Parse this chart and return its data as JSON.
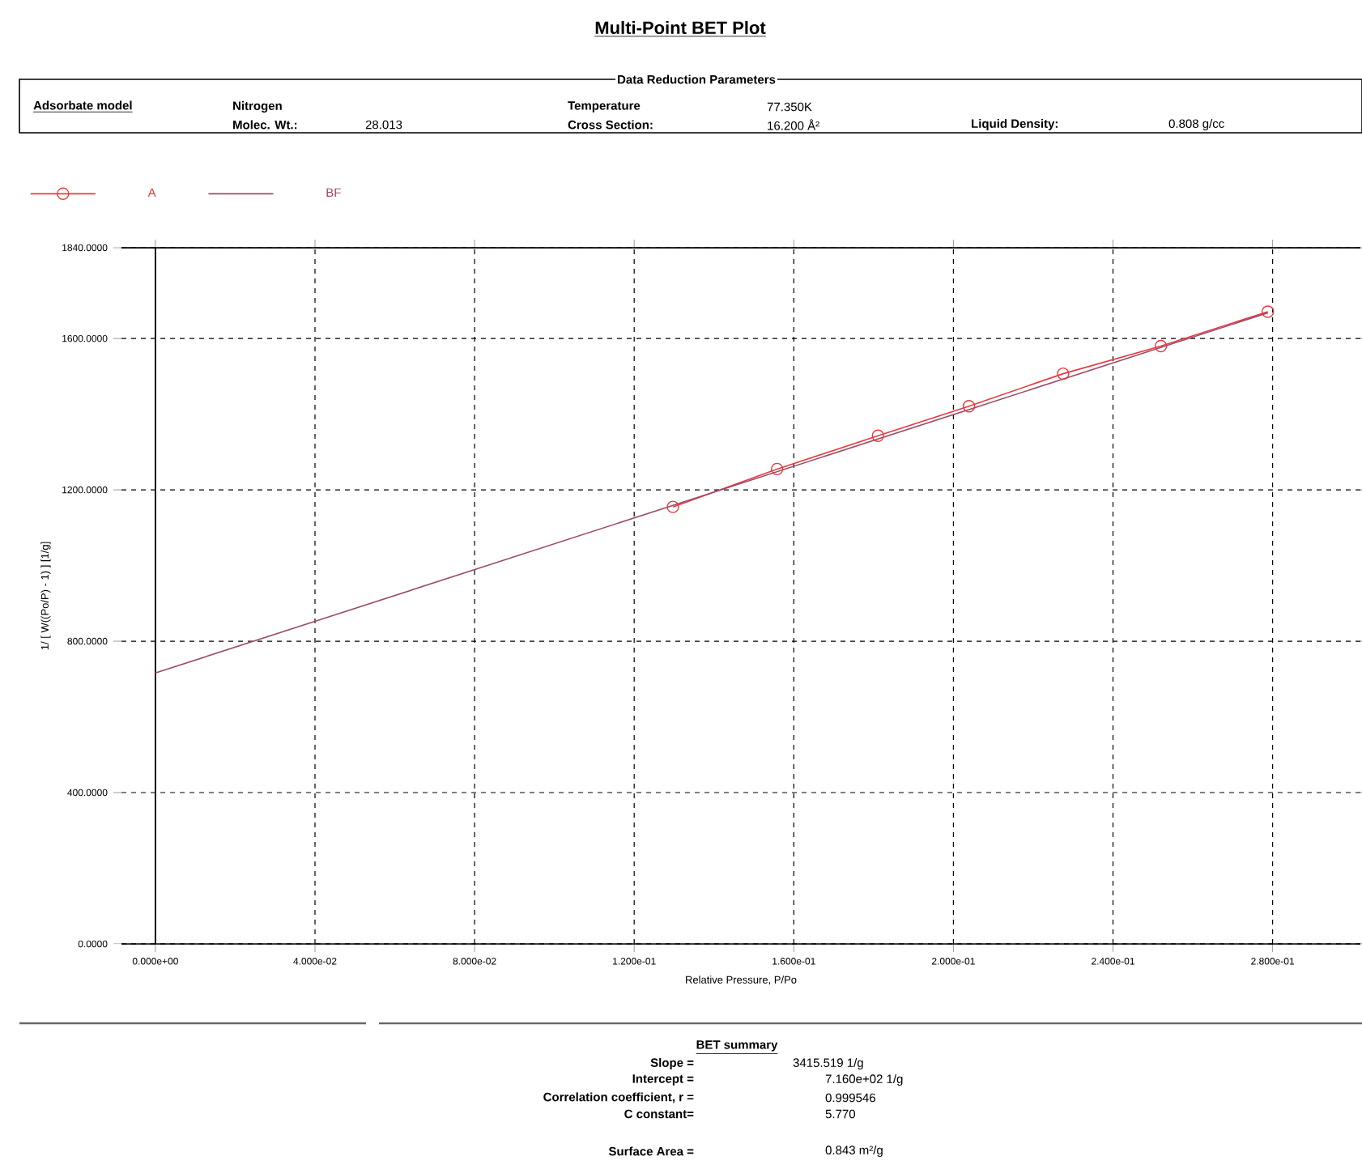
{
  "chart_data": {
    "type": "line",
    "title": "Multi-Point BET Plot",
    "xlabel": "Relative Pressure, P/Po",
    "ylabel": "1/ [ W((Po/P) - 1) ] [1/g]",
    "series": [
      {
        "name": "A",
        "type": "line",
        "color": "#e8383d",
        "marker": "circle",
        "line_style": "solid",
        "x": [
          0.1297,
          0.1558,
          0.1811,
          0.2039,
          0.2275,
          0.252,
          0.2788
        ],
        "values": [
          1155,
          1255,
          1343,
          1421,
          1507,
          1580,
          1671
        ]
      },
      {
        "name": "BF",
        "type": "line",
        "color": "#9c4a6a",
        "marker": "none",
        "line_style": "solid",
        "x": [
          0,
          0.2788
        ],
        "values": [
          716,
          1668
        ]
      }
    ],
    "xlim": [
      -0.0085,
      0.302
    ],
    "ylim": [
      0,
      1840
    ],
    "xticks": [
      {
        "value": 0,
        "label": "0.000e+00"
      },
      {
        "value": 0.04,
        "label": "4.000e-02"
      },
      {
        "value": 0.08,
        "label": "8.000e-02"
      },
      {
        "value": 0.12,
        "label": "1.200e-01"
      },
      {
        "value": 0.16,
        "label": "1.600e-01"
      },
      {
        "value": 0.2,
        "label": "2.000e-01"
      },
      {
        "value": 0.24,
        "label": "2.400e-01"
      },
      {
        "value": 0.28,
        "label": "2.800e-01"
      }
    ],
    "yticks": [
      {
        "value": 0,
        "label": "0.0000"
      },
      {
        "value": 400,
        "label": "400.0000"
      },
      {
        "value": 800,
        "label": "800.0000"
      },
      {
        "value": 1200,
        "label": "1200.0000"
      },
      {
        "value": 1600,
        "label": "1600.0000"
      },
      {
        "value": 1840,
        "label": "1840.0000"
      }
    ],
    "grid": true,
    "legend": "top left",
    "ref_lines": [
      {
        "axis": "x",
        "value": 0,
        "color": "#000000"
      }
    ],
    "annotations": [
      "Data Reduction Parameters",
      "Adsorbate model",
      "Nitrogen",
      "Molec. Wt.:",
      "28.013",
      "Temperature",
      "77.350K",
      "Cross Section:",
      "16.200 Å²",
      "Liquid Density:",
      "0.808  g/cc",
      "BET summary",
      "Slope =",
      "3415.519 1/g",
      "Intercept =",
      "7.160e+02 1/g",
      "Correlation coefficient, r =",
      "0.999546",
      "C constant=",
      "5.770",
      "Surface Area =",
      "0.843 m²/g"
    ]
  }
}
